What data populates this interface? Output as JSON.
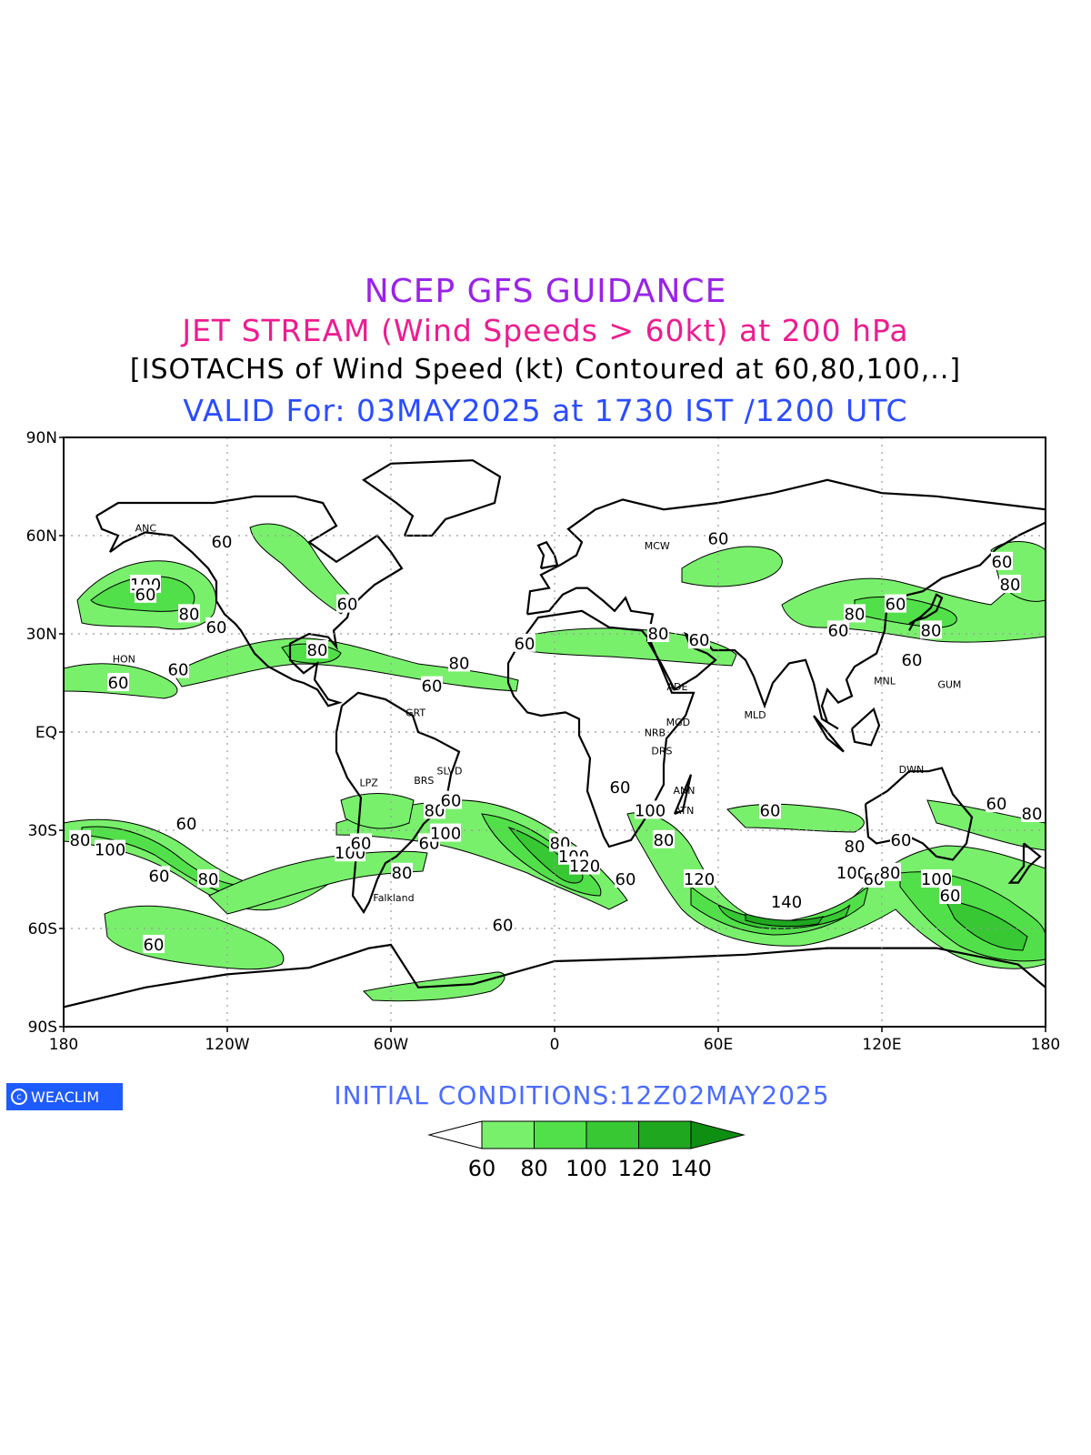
{
  "titles": {
    "line1": {
      "text": "NCEP GFS GUIDANCE",
      "color": "#9a22e8"
    },
    "line2": {
      "text": "JET STREAM (Wind Speeds > 60kt) at 200 hPa",
      "color": "#ee1c8f"
    },
    "line3": {
      "text": "[ISOTACHS of Wind Speed (kt) Contoured at 60,80,100,..]",
      "color": "#000000"
    },
    "line4": {
      "text": "VALID For: 03MAY2025 at 1730 IST /1200 UTC",
      "color": "#2a4dff"
    }
  },
  "initial_conditions": {
    "text": "INITIAL CONDITIONS:12Z02MAY2025",
    "color": "#4a6cff"
  },
  "logo": {
    "text": "WEACLIM",
    "bg": "#1e5bff"
  },
  "map": {
    "lat_ticks": [
      "90N",
      "60N",
      "30N",
      "EQ",
      "30S",
      "60S",
      "90S"
    ],
    "lon_ticks": [
      "180",
      "120W",
      "60W",
      "0",
      "60E",
      "120E",
      "180"
    ],
    "grid_lines": true,
    "projection": "cylindrical equidistant"
  },
  "colorbar": {
    "labels": [
      "60",
      "80",
      "100",
      "120",
      "140"
    ],
    "colors": [
      "#79f06c",
      "#52e04a",
      "#37c834",
      "#1fa81f",
      "#0e8f12"
    ]
  },
  "stations": [
    {
      "label": "ANC",
      "lon": -149.9,
      "lat": 61.2
    },
    {
      "label": "HON",
      "lon": -157.9,
      "lat": 21.3
    },
    {
      "label": "MCW",
      "lon": 37.6,
      "lat": 55.8
    },
    {
      "label": "GUM",
      "lon": 144.8,
      "lat": 13.5
    },
    {
      "label": "MNL",
      "lon": 121.0,
      "lat": 14.6
    },
    {
      "label": "BRS",
      "lon": -47.9,
      "lat": -15.8
    },
    {
      "label": "SLVD",
      "lon": -38.5,
      "lat": -12.9
    },
    {
      "label": "LPZ",
      "lon": -68.1,
      "lat": -16.5
    },
    {
      "label": "Falkland",
      "lon": -59.0,
      "lat": -51.7
    },
    {
      "label": "MLD",
      "lon": 73.5,
      "lat": 4.2
    },
    {
      "label": "DRS",
      "lon": 39.3,
      "lat": -6.8
    },
    {
      "label": "ANN",
      "lon": 47.5,
      "lat": -18.9
    },
    {
      "label": "ATN",
      "lon": 47.5,
      "lat": -25.0
    },
    {
      "label": "DWN",
      "lon": 130.8,
      "lat": -12.5
    },
    {
      "label": "GRT",
      "lon": -51.0,
      "lat": 4.9
    },
    {
      "label": "NRB",
      "lon": 36.8,
      "lat": -1.3
    },
    {
      "label": "ADE",
      "lon": 45.0,
      "lat": 12.8
    },
    {
      "label": "MGD",
      "lon": 45.3,
      "lat": 2.0
    }
  ],
  "isotach_labels": [
    {
      "v": "100",
      "lon": -150,
      "lat": 45
    },
    {
      "v": "60",
      "lon": -150,
      "lat": 42
    },
    {
      "v": "80",
      "lon": -134,
      "lat": 36
    },
    {
      "v": "60",
      "lon": -124,
      "lat": 32
    },
    {
      "v": "60",
      "lon": -122,
      "lat": 58
    },
    {
      "v": "60",
      "lon": -138,
      "lat": 19
    },
    {
      "v": "60",
      "lon": -160,
      "lat": 15
    },
    {
      "v": "80",
      "lon": -87,
      "lat": 25
    },
    {
      "v": "60",
      "lon": -76,
      "lat": 39
    },
    {
      "v": "80",
      "lon": -35,
      "lat": 21
    },
    {
      "v": "60",
      "lon": -45,
      "lat": 14
    },
    {
      "v": "60",
      "lon": -11,
      "lat": 27
    },
    {
      "v": "60",
      "lon": 60,
      "lat": 59
    },
    {
      "v": "80",
      "lon": 38,
      "lat": 30
    },
    {
      "v": "60",
      "lon": 53,
      "lat": 28
    },
    {
      "v": "80",
      "lon": 110,
      "lat": 36
    },
    {
      "v": "60",
      "lon": 104,
      "lat": 31
    },
    {
      "v": "60",
      "lon": 125,
      "lat": 39
    },
    {
      "v": "80",
      "lon": 138,
      "lat": 31
    },
    {
      "v": "60",
      "lon": 131,
      "lat": 22
    },
    {
      "v": "60",
      "lon": 164,
      "lat": 52
    },
    {
      "v": "80",
      "lon": 167,
      "lat": 45
    },
    {
      "v": "80",
      "lon": -174,
      "lat": -33
    },
    {
      "v": "100",
      "lon": -163,
      "lat": -36
    },
    {
      "v": "60",
      "lon": -135,
      "lat": -28
    },
    {
      "v": "60",
      "lon": -145,
      "lat": -44
    },
    {
      "v": "80",
      "lon": -127,
      "lat": -45
    },
    {
      "v": "60",
      "lon": -147,
      "lat": -65
    },
    {
      "v": "100",
      "lon": -75,
      "lat": -37
    },
    {
      "v": "60",
      "lon": -71,
      "lat": -34
    },
    {
      "v": "80",
      "lon": -56,
      "lat": -43
    },
    {
      "v": "60",
      "lon": -46,
      "lat": -34
    },
    {
      "v": "100",
      "lon": -40,
      "lat": -31
    },
    {
      "v": "80",
      "lon": -44,
      "lat": -24
    },
    {
      "v": "60",
      "lon": -38,
      "lat": -21
    },
    {
      "v": "60",
      "lon": -19,
      "lat": -59
    },
    {
      "v": "80",
      "lon": 2,
      "lat": -34
    },
    {
      "v": "100",
      "lon": 7,
      "lat": -38
    },
    {
      "v": "120",
      "lon": 11,
      "lat": -41
    },
    {
      "v": "60",
      "lon": 26,
      "lat": -45
    },
    {
      "v": "60",
      "lon": 24,
      "lat": -17
    },
    {
      "v": "100",
      "lon": 35,
      "lat": -24
    },
    {
      "v": "80",
      "lon": 40,
      "lat": -33
    },
    {
      "v": "120",
      "lon": 53,
      "lat": -45
    },
    {
      "v": "140",
      "lon": 85,
      "lat": -52
    },
    {
      "v": "60",
      "lon": 79,
      "lat": -24
    },
    {
      "v": "100",
      "lon": 109,
      "lat": -43
    },
    {
      "v": "80",
      "lon": 110,
      "lat": -35
    },
    {
      "v": "60",
      "lon": 117,
      "lat": -45
    },
    {
      "v": "80",
      "lon": 123,
      "lat": -43
    },
    {
      "v": "60",
      "lon": 127,
      "lat": -33
    },
    {
      "v": "100",
      "lon": 140,
      "lat": -45
    },
    {
      "v": "60",
      "lon": 145,
      "lat": -50
    },
    {
      "v": "60",
      "lon": 162,
      "lat": -22
    },
    {
      "v": "80",
      "lon": 175,
      "lat": -25
    }
  ]
}
